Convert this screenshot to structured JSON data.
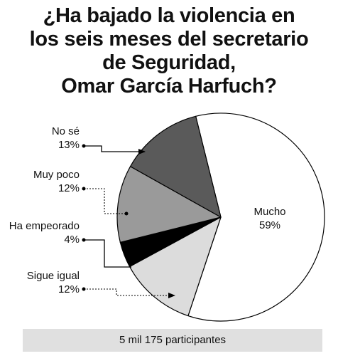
{
  "title_lines": [
    "¿Ha bajado la violencia en",
    "los seis meses del secretario",
    "de Seguridad,",
    "Omar García Harfuch?"
  ],
  "footer": "5 mil 175 participantes",
  "chart_data": {
    "type": "pie",
    "title": "¿Ha bajado la violencia en los seis meses del secretario de Seguridad, Omar García Harfuch?",
    "slices": [
      {
        "label": "Mucho",
        "value": 59,
        "value_label": "59%",
        "color": "#ffffff"
      },
      {
        "label": "Sigue igual",
        "value": 12,
        "value_label": "12%",
        "color": "#dcdcdc"
      },
      {
        "label": "Ha empeorado",
        "value": 4,
        "value_label": "4%",
        "color": "#000000"
      },
      {
        "label": "Muy poco",
        "value": 12,
        "value_label": "12%",
        "color": "#9a9a9a"
      },
      {
        "label": "No sé",
        "value": 13,
        "value_label": "13%",
        "color": "#5a5a5a"
      }
    ],
    "legend": "none",
    "labels_placement": "outside-left with leader lines; Mucho inside"
  }
}
